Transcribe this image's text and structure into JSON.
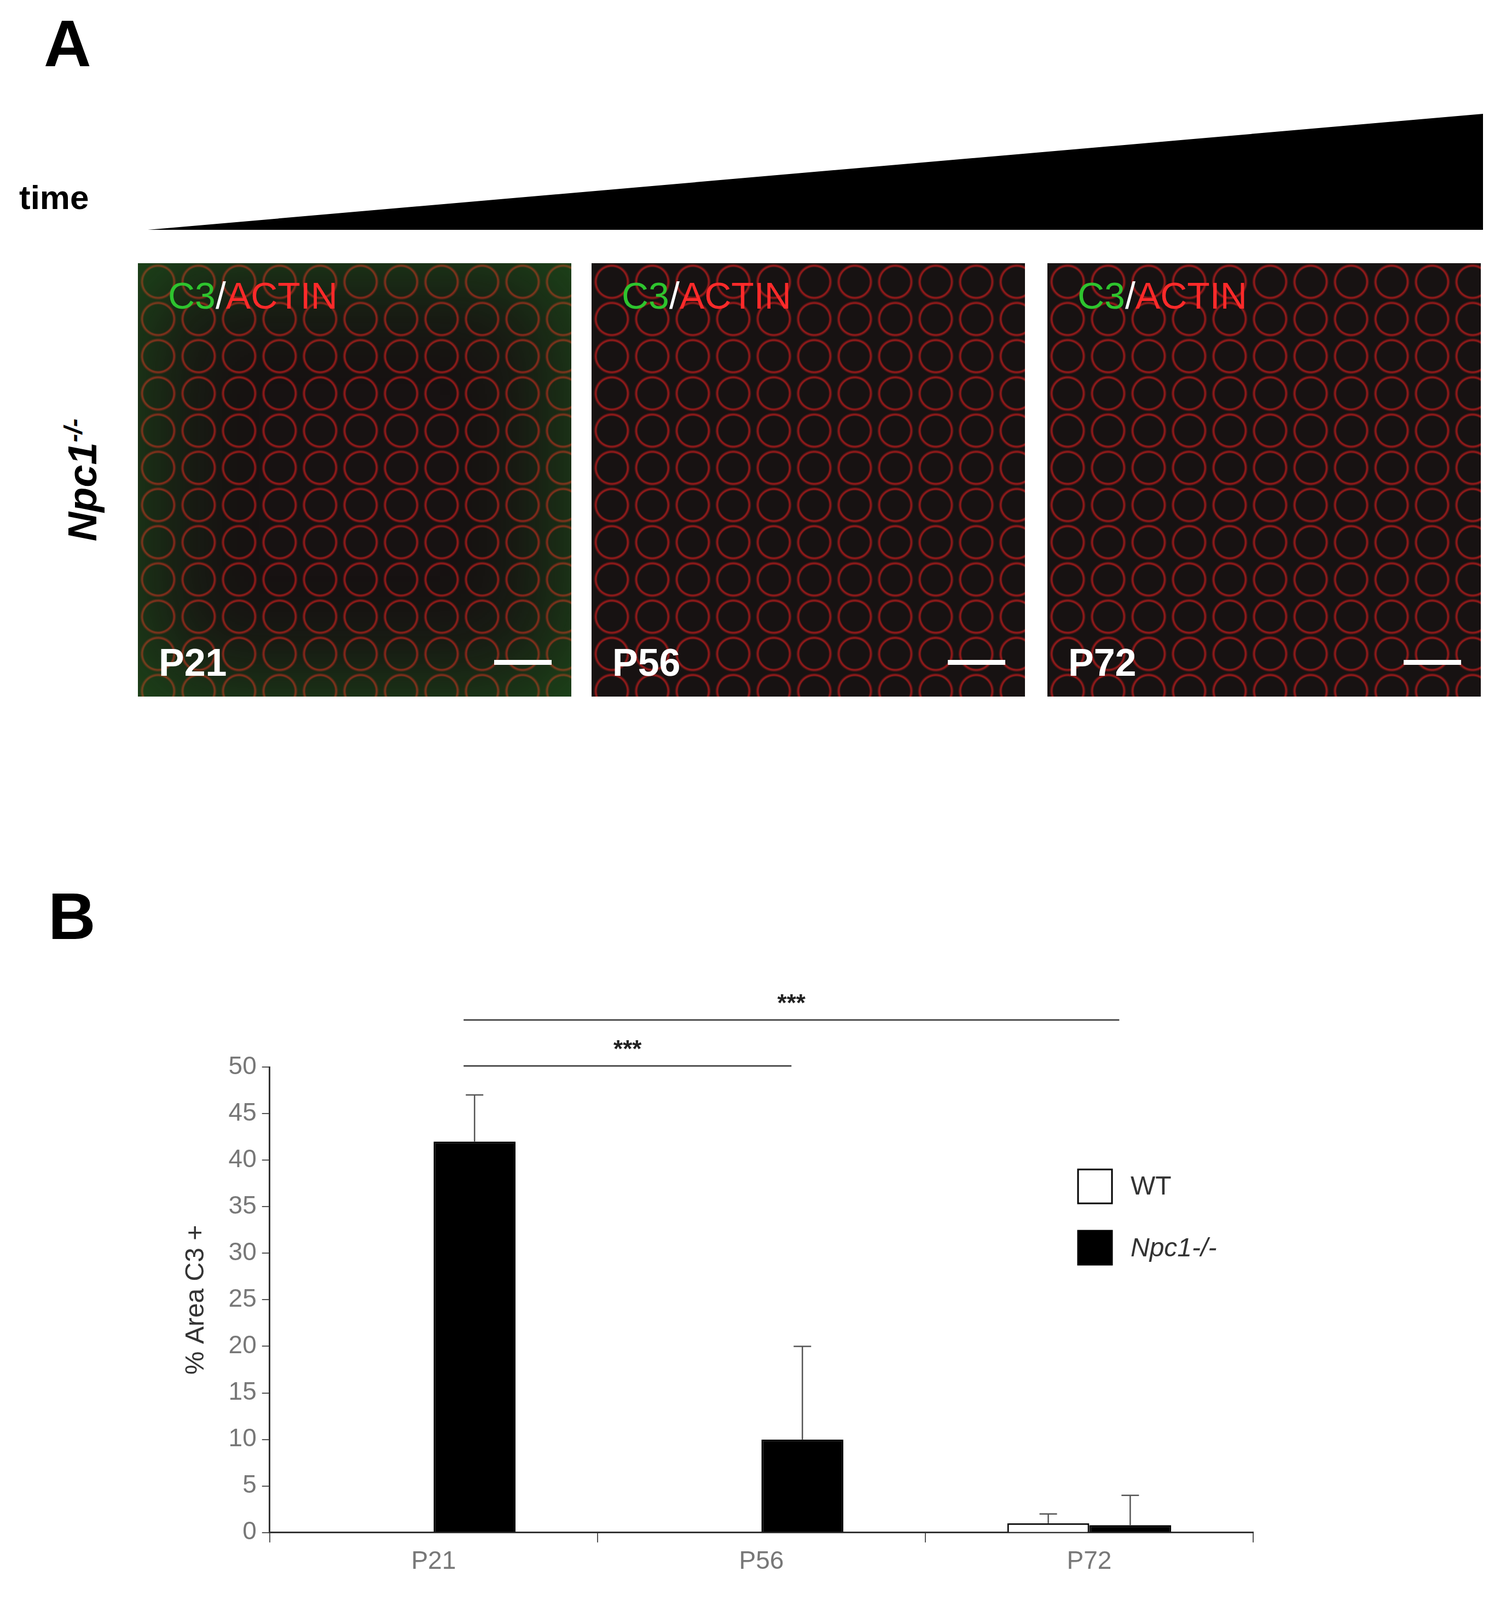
{
  "panel_a": {
    "label": "A",
    "time_label": "time",
    "genotype": {
      "text": "Npc1",
      "superscript": "-/-"
    },
    "stain": {
      "green": "C3",
      "separator": "/",
      "red": "ACTIN"
    },
    "timepoints": [
      "P21",
      "P56",
      "P72"
    ]
  },
  "panel_b": {
    "label": "B"
  },
  "chart_data": {
    "type": "bar",
    "categories": [
      "P21",
      "P56",
      "P72"
    ],
    "y_label": "% Area C3 +",
    "series": [
      {
        "name": "WT",
        "color": "#ffffff",
        "values": [
          null,
          null,
          1
        ],
        "errors": [
          null,
          null,
          1
        ]
      },
      {
        "name": "Npc1-/-",
        "color": "#000000",
        "values": [
          42,
          10,
          0.8
        ],
        "errors": [
          5,
          10,
          3.2
        ]
      }
    ],
    "ylim": [
      0,
      50
    ],
    "yticks": [
      0,
      5,
      10,
      15,
      20,
      25,
      30,
      35,
      40,
      45,
      50
    ],
    "grid": false,
    "legend": "right",
    "annotations": [
      {
        "text": "***",
        "from": "P21",
        "to": "P56"
      },
      {
        "text": "***",
        "from": "P21",
        "to": "P72"
      }
    ]
  }
}
